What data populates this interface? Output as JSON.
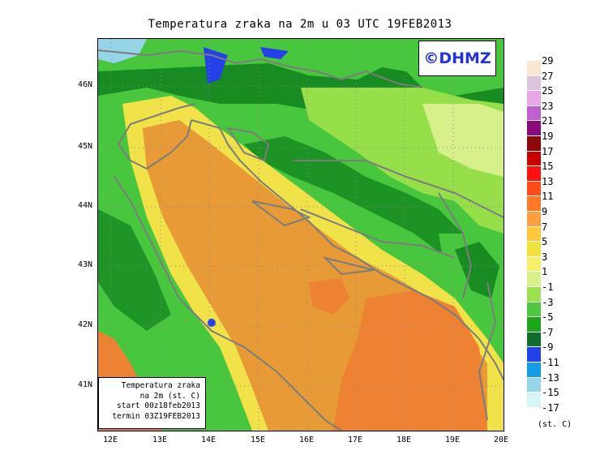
{
  "title": "Temperatura zraka na 2m u 03 UTC 19FEB2013",
  "logo": "©DHMZ",
  "info_box": {
    "line1": "Temperatura zraka",
    "line2": "na 2m (st. C)",
    "line3": "start 00z18feb2013",
    "line4": "termin 03Z19FEB2013"
  },
  "lat_labels": [
    "46N",
    "45N",
    "44N",
    "43N",
    "42N",
    "41N"
  ],
  "lon_labels": [
    "12E",
    "13E",
    "14E",
    "15E",
    "16E",
    "17E",
    "18E",
    "19E",
    "20E"
  ],
  "legend": {
    "units": "(st. C)",
    "labels": [
      "29",
      "27",
      "25",
      "23",
      "21",
      "19",
      "17",
      "15",
      "13",
      "11",
      "9",
      "7",
      "5",
      "3",
      "1",
      "-1",
      "-3",
      "-5",
      "-7",
      "-9",
      "-11",
      "-13",
      "-15",
      "-17"
    ],
    "colors": [
      "#fde7d2",
      "#dcc5dc",
      "#e7a7e7",
      "#c060d0",
      "#8a0a7a",
      "#8a0a0a",
      "#c80000",
      "#ff1010",
      "#ff4c1a",
      "#ff7a28",
      "#ffa040",
      "#ffc838",
      "#f0e040",
      "#f5f06a",
      "#d8f08a",
      "#9ae050",
      "#4ec840",
      "#1aa81a",
      "#0e6e2c",
      "#2440e8",
      "#149ee8",
      "#96d4e8",
      "#d8f4f4",
      "#ffffff"
    ]
  },
  "colors": {
    "warm_sea": "#e79a35",
    "orange_hot": "#ee8233",
    "yellow": "#f0e248",
    "light_green": "#96de4a",
    "green": "#48c63e",
    "dark_green": "#188c22",
    "blue": "#2440e8",
    "cyan": "#96d4e8",
    "coast": "#7c7c7c"
  }
}
